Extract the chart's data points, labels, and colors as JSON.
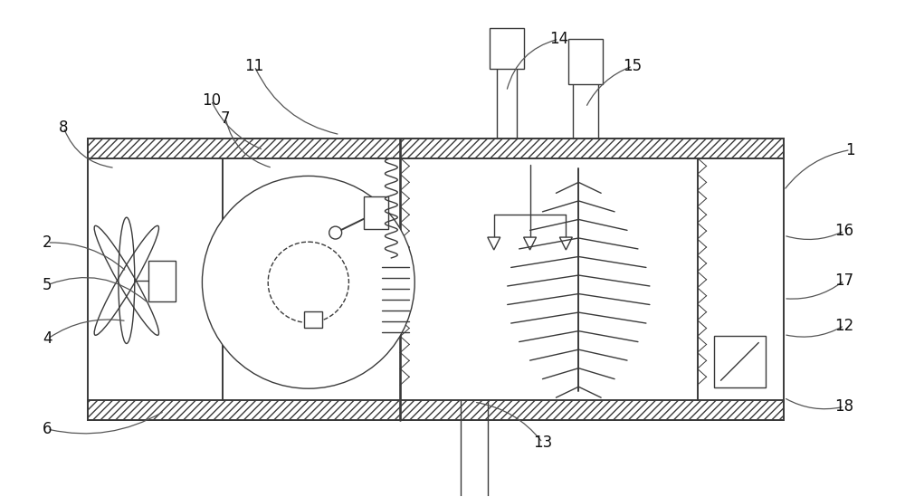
{
  "bg_color": "#ffffff",
  "line_color": "#3a3a3a",
  "font_size": 12,
  "fig_width": 10.0,
  "fig_height": 5.49
}
